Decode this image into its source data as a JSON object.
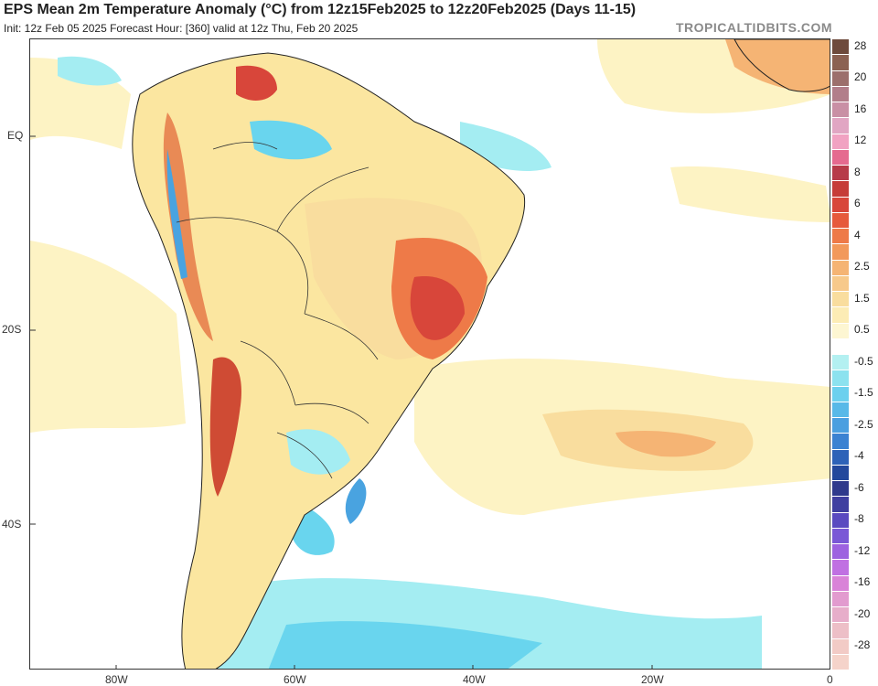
{
  "header": {
    "title": "EPS Mean 2m Temperature Anomaly (°C) from 12z15Feb2025 to 12z20Feb2025 (Days 11-15)",
    "subtitle": "Init: 12z Feb 05 2025   Forecast Hour: [360]   valid at 12z Thu, Feb 20 2025",
    "brand": "TROPICALTIDBITS.COM"
  },
  "map": {
    "region": "South America and South Atlantic",
    "lat_labels": [
      "EQ",
      "20S",
      "40S"
    ],
    "lon_labels": [
      "80W",
      "60W",
      "40W",
      "20W",
      "0"
    ],
    "colors": {
      "land_outline": "#222222",
      "ocean_background": "#ffffff",
      "very_light_warm": "#fdf3c4",
      "light_warm": "#fbe6a0",
      "warm": "#f6c57d",
      "hot": "#e98a55",
      "very_hot": "#cf4b34",
      "light_cool": "#a4edf2",
      "cool": "#69d5ee",
      "colder": "#49a3e0"
    }
  },
  "colorbar": {
    "levels": [
      {
        "label": "28",
        "color": "#6e4a3c"
      },
      {
        "label": "",
        "color": "#8b6152"
      },
      {
        "label": "20",
        "color": "#9c6f6c"
      },
      {
        "label": "",
        "color": "#b27e8a"
      },
      {
        "label": "16",
        "color": "#c990a5"
      },
      {
        "label": "",
        "color": "#e1a6c3"
      },
      {
        "label": "12",
        "color": "#f1a2c2"
      },
      {
        "label": "",
        "color": "#e56a8f"
      },
      {
        "label": "8",
        "color": "#b73b49"
      },
      {
        "label": "",
        "color": "#c63c38"
      },
      {
        "label": "6",
        "color": "#d8463a"
      },
      {
        "label": "",
        "color": "#e65a3c"
      },
      {
        "label": "4",
        "color": "#ee7a48"
      },
      {
        "label": "",
        "color": "#f2995b"
      },
      {
        "label": "2.5",
        "color": "#f5b474"
      },
      {
        "label": "",
        "color": "#f7c98b"
      },
      {
        "label": "1.5",
        "color": "#f9dd9e"
      },
      {
        "label": "",
        "color": "#fcecb5"
      },
      {
        "label": "0.5",
        "color": "#fdf6d2"
      },
      {
        "label": "",
        "color": "#ffffff"
      },
      {
        "label": "-0.5",
        "color": "#b3f0f1"
      },
      {
        "label": "",
        "color": "#8ce2ef"
      },
      {
        "label": "-1.5",
        "color": "#6cd0ee"
      },
      {
        "label": "",
        "color": "#58b9e8"
      },
      {
        "label": "-2.5",
        "color": "#4b9fe0"
      },
      {
        "label": "",
        "color": "#3b82d2"
      },
      {
        "label": "-4",
        "color": "#2d62b8"
      },
      {
        "label": "",
        "color": "#23489c"
      },
      {
        "label": "-6",
        "color": "#2f3a8c"
      },
      {
        "label": "",
        "color": "#3f3fa0"
      },
      {
        "label": "-8",
        "color": "#5a4ac0"
      },
      {
        "label": "",
        "color": "#7a58d6"
      },
      {
        "label": "-12",
        "color": "#9d62e0"
      },
      {
        "label": "",
        "color": "#c070e2"
      },
      {
        "label": "-16",
        "color": "#d983d8"
      },
      {
        "label": "",
        "color": "#e29bcf"
      },
      {
        "label": "-20",
        "color": "#e7aeca"
      },
      {
        "label": "",
        "color": "#edbfc7"
      },
      {
        "label": "-28",
        "color": "#f2cbc6"
      },
      {
        "label": "",
        "color": "#f5d3ca"
      }
    ]
  }
}
